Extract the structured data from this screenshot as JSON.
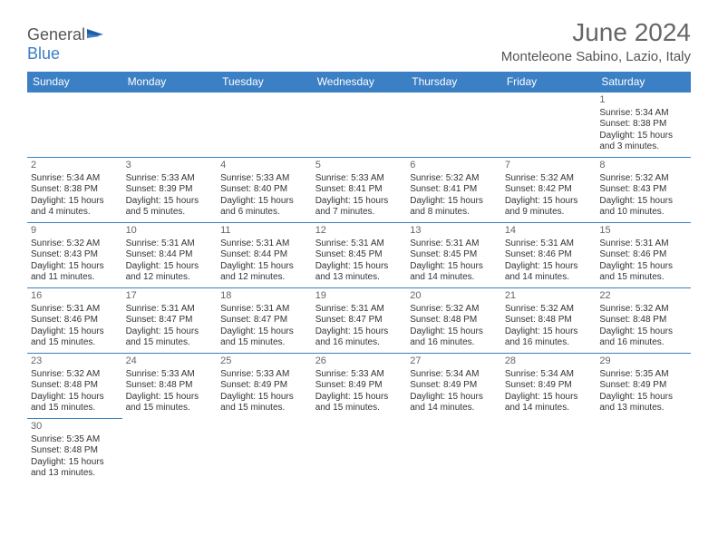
{
  "logo": {
    "text1": "General",
    "text2": "Blue"
  },
  "title": "June 2024",
  "location": "Monteleone Sabino, Lazio, Italy",
  "colors": {
    "header_bg": "#3b7fc4",
    "border": "#3b7fc4",
    "title": "#666666"
  },
  "day_headers": [
    "Sunday",
    "Monday",
    "Tuesday",
    "Wednesday",
    "Thursday",
    "Friday",
    "Saturday"
  ],
  "first_weekday": 6,
  "days": [
    {
      "n": 1,
      "sunrise": "5:34 AM",
      "sunset": "8:38 PM",
      "daylight": "15 hours and 3 minutes."
    },
    {
      "n": 2,
      "sunrise": "5:34 AM",
      "sunset": "8:38 PM",
      "daylight": "15 hours and 4 minutes."
    },
    {
      "n": 3,
      "sunrise": "5:33 AM",
      "sunset": "8:39 PM",
      "daylight": "15 hours and 5 minutes."
    },
    {
      "n": 4,
      "sunrise": "5:33 AM",
      "sunset": "8:40 PM",
      "daylight": "15 hours and 6 minutes."
    },
    {
      "n": 5,
      "sunrise": "5:33 AM",
      "sunset": "8:41 PM",
      "daylight": "15 hours and 7 minutes."
    },
    {
      "n": 6,
      "sunrise": "5:32 AM",
      "sunset": "8:41 PM",
      "daylight": "15 hours and 8 minutes."
    },
    {
      "n": 7,
      "sunrise": "5:32 AM",
      "sunset": "8:42 PM",
      "daylight": "15 hours and 9 minutes."
    },
    {
      "n": 8,
      "sunrise": "5:32 AM",
      "sunset": "8:43 PM",
      "daylight": "15 hours and 10 minutes."
    },
    {
      "n": 9,
      "sunrise": "5:32 AM",
      "sunset": "8:43 PM",
      "daylight": "15 hours and 11 minutes."
    },
    {
      "n": 10,
      "sunrise": "5:31 AM",
      "sunset": "8:44 PM",
      "daylight": "15 hours and 12 minutes."
    },
    {
      "n": 11,
      "sunrise": "5:31 AM",
      "sunset": "8:44 PM",
      "daylight": "15 hours and 12 minutes."
    },
    {
      "n": 12,
      "sunrise": "5:31 AM",
      "sunset": "8:45 PM",
      "daylight": "15 hours and 13 minutes."
    },
    {
      "n": 13,
      "sunrise": "5:31 AM",
      "sunset": "8:45 PM",
      "daylight": "15 hours and 14 minutes."
    },
    {
      "n": 14,
      "sunrise": "5:31 AM",
      "sunset": "8:46 PM",
      "daylight": "15 hours and 14 minutes."
    },
    {
      "n": 15,
      "sunrise": "5:31 AM",
      "sunset": "8:46 PM",
      "daylight": "15 hours and 15 minutes."
    },
    {
      "n": 16,
      "sunrise": "5:31 AM",
      "sunset": "8:46 PM",
      "daylight": "15 hours and 15 minutes."
    },
    {
      "n": 17,
      "sunrise": "5:31 AM",
      "sunset": "8:47 PM",
      "daylight": "15 hours and 15 minutes."
    },
    {
      "n": 18,
      "sunrise": "5:31 AM",
      "sunset": "8:47 PM",
      "daylight": "15 hours and 15 minutes."
    },
    {
      "n": 19,
      "sunrise": "5:31 AM",
      "sunset": "8:47 PM",
      "daylight": "15 hours and 16 minutes."
    },
    {
      "n": 20,
      "sunrise": "5:32 AM",
      "sunset": "8:48 PM",
      "daylight": "15 hours and 16 minutes."
    },
    {
      "n": 21,
      "sunrise": "5:32 AM",
      "sunset": "8:48 PM",
      "daylight": "15 hours and 16 minutes."
    },
    {
      "n": 22,
      "sunrise": "5:32 AM",
      "sunset": "8:48 PM",
      "daylight": "15 hours and 16 minutes."
    },
    {
      "n": 23,
      "sunrise": "5:32 AM",
      "sunset": "8:48 PM",
      "daylight": "15 hours and 15 minutes."
    },
    {
      "n": 24,
      "sunrise": "5:33 AM",
      "sunset": "8:48 PM",
      "daylight": "15 hours and 15 minutes."
    },
    {
      "n": 25,
      "sunrise": "5:33 AM",
      "sunset": "8:49 PM",
      "daylight": "15 hours and 15 minutes."
    },
    {
      "n": 26,
      "sunrise": "5:33 AM",
      "sunset": "8:49 PM",
      "daylight": "15 hours and 15 minutes."
    },
    {
      "n": 27,
      "sunrise": "5:34 AM",
      "sunset": "8:49 PM",
      "daylight": "15 hours and 14 minutes."
    },
    {
      "n": 28,
      "sunrise": "5:34 AM",
      "sunset": "8:49 PM",
      "daylight": "15 hours and 14 minutes."
    },
    {
      "n": 29,
      "sunrise": "5:35 AM",
      "sunset": "8:49 PM",
      "daylight": "15 hours and 13 minutes."
    },
    {
      "n": 30,
      "sunrise": "5:35 AM",
      "sunset": "8:48 PM",
      "daylight": "15 hours and 13 minutes."
    }
  ],
  "labels": {
    "sunrise": "Sunrise:",
    "sunset": "Sunset:",
    "daylight": "Daylight:"
  }
}
